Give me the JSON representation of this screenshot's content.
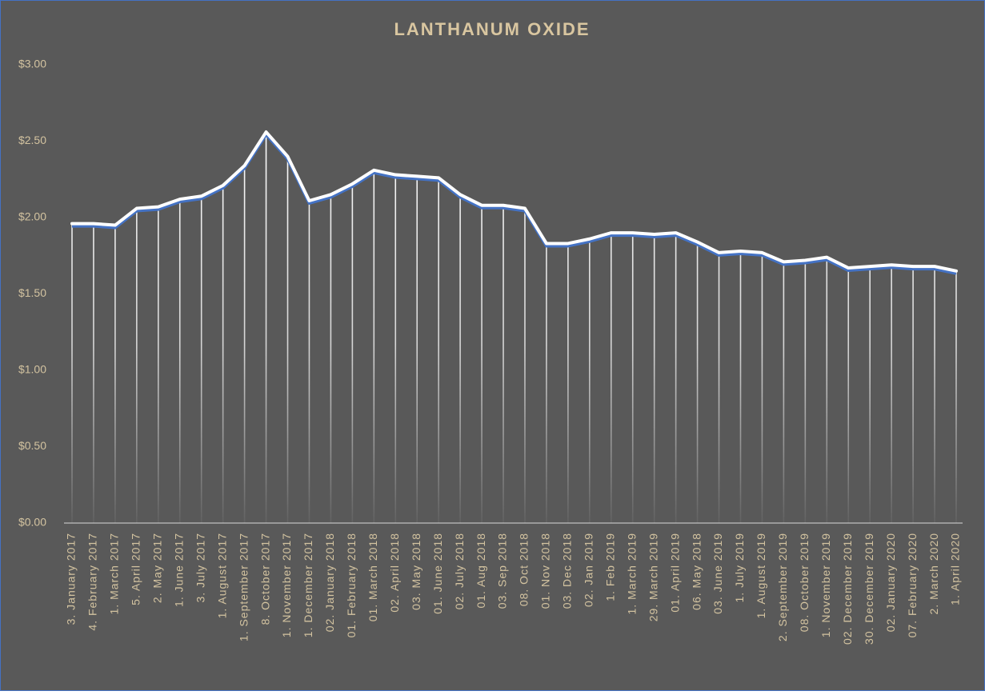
{
  "chart_data": {
    "type": "line",
    "title": "LANTHANUM OXIDE",
    "categories": [
      "3. January 2017",
      "4. February 2017",
      "1. March 2017",
      "5. April 2017",
      "2. May 2017",
      "1. June 2017",
      "3. July 2017",
      "1. August 2017",
      "1. September 2017",
      "8. October 2017",
      "1. November 2017",
      "1. December 2017",
      "02. January 2018",
      "01. February 2018",
      "01. March 2018",
      "02. April 2018",
      "03. May 2018",
      "01. June 2018",
      "02. July 2018",
      "01. Aug 2018",
      "03. Sep 2018",
      "08. Oct 2018",
      "01. Nov 2018",
      "03. Dec 2018",
      "02. Jan 2019",
      "1. Feb 2019",
      "1. March 2019",
      "29. March 2019",
      "01. April 2019",
      "06. May 2018",
      "03. June 2019",
      "1. July 2019",
      "1. August 2019",
      "2. September 2019",
      "08. October 2019",
      "1. November 2019",
      "02. December 2019",
      "30. December 2019",
      "02. January 2020",
      "07. February 2020",
      "2. March 2020",
      "1. April 2020"
    ],
    "values": [
      1.96,
      1.96,
      1.95,
      2.06,
      2.07,
      2.12,
      2.14,
      2.21,
      2.34,
      2.56,
      2.4,
      2.11,
      2.15,
      2.22,
      2.31,
      2.28,
      2.27,
      2.26,
      2.15,
      2.08,
      2.08,
      2.06,
      1.83,
      1.83,
      1.86,
      1.9,
      1.9,
      1.89,
      1.9,
      1.84,
      1.77,
      1.78,
      1.77,
      1.71,
      1.72,
      1.74,
      1.67,
      1.68,
      1.69,
      1.68,
      1.68,
      1.65
    ],
    "color": "#ffffff",
    "ylim": [
      0,
      3
    ],
    "yticks": [
      {
        "value": 0,
        "label": "$0.00"
      },
      {
        "value": 0.5,
        "label": "$0.50"
      },
      {
        "value": 1,
        "label": "$1.00"
      },
      {
        "value": 1.5,
        "label": "$1.50"
      },
      {
        "value": 2,
        "label": "$2.00"
      },
      {
        "value": 2.5,
        "label": "$2.50"
      },
      {
        "value": 3,
        "label": "$3.00"
      }
    ],
    "drop_lines": true
  }
}
